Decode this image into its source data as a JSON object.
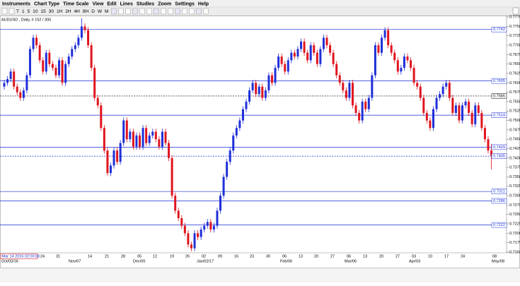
{
  "menu": [
    "Instruments",
    "Chart Type",
    "Time Scale",
    "View",
    "Edit",
    "Lines",
    "Studies",
    "Zoom",
    "Settings",
    "Help"
  ],
  "toolbar": [
    "T",
    "1",
    "5",
    "10",
    "15",
    "30",
    "1H",
    "2H",
    "4H",
    "8H",
    "D",
    "W",
    "M"
  ],
  "chart_data": {
    "type": "candlestick",
    "title": "AUDUSD , Daily, # 152 / 300",
    "up_color": "#1f2fd8",
    "down_color": "#e0141e",
    "level_color": "#1a2fd6",
    "ylim": [
      0.7148,
      0.7779
    ],
    "yticks": [
      0.7775,
      {
        "value": 0.775,
        "label": "0.7750"
      },
      0.7725,
      {
        "value": 0.77,
        "label": "0.7700"
      },
      0.7675,
      {
        "value": 0.765,
        "label": "0.7650"
      },
      0.7625,
      {
        "value": 0.76,
        "label": "0.7600"
      },
      0.7575,
      {
        "value": 0.755,
        "label": "0.7550"
      },
      0.7525,
      {
        "value": 0.75,
        "label": "0.7500"
      },
      0.7475,
      {
        "value": 0.745,
        "label": "0.7450"
      },
      0.7425,
      {
        "value": 0.74,
        "label": "0.7400"
      },
      0.7375,
      {
        "value": 0.735,
        "label": "0.7350"
      },
      0.7325,
      {
        "value": 0.73,
        "label": "0.7300"
      },
      0.7275,
      {
        "value": 0.725,
        "label": "0.7250"
      },
      0.7225,
      {
        "value": 0.72,
        "label": "0.7200"
      },
      0.7175,
      {
        "value": 0.715,
        "label": "0.7150"
      }
    ],
    "levels": [
      0.7742,
      0.7605,
      0.7514,
      0.7429,
      0.7311,
      0.7286,
      0.7222
    ],
    "cursor_line": 0.7565,
    "price_line": 0.7405,
    "cursor_date": "Mar 14 2016 02:00:00",
    "x_labels": [
      "24",
      "31",
      "14",
      "21",
      "28",
      "05",
      "12",
      "19",
      "26",
      "02",
      "09",
      "16",
      "23",
      "30",
      "06",
      "13",
      "20",
      "27",
      "06",
      "13",
      "20",
      "27",
      "03",
      "10",
      "17",
      "24",
      "08"
    ],
    "x_month_labels": [
      "Oct/03/16",
      "Nov/07",
      "Dec/05",
      "Jan/02/17",
      "Feb/06",
      "Mar/06",
      "Apr/03",
      "May/08"
    ],
    "candles": [
      [
        0.759,
        0.7608,
        0.7582,
        0.76
      ],
      [
        0.76,
        0.7618,
        0.7592,
        0.761
      ],
      [
        0.761,
        0.7638,
        0.7602,
        0.763
      ],
      [
        0.763,
        0.7638,
        0.7582,
        0.759
      ],
      [
        0.759,
        0.7598,
        0.7567,
        0.7575
      ],
      [
        0.7575,
        0.7583,
        0.7552,
        0.756
      ],
      [
        0.756,
        0.7588,
        0.7552,
        0.758
      ],
      [
        0.758,
        0.7628,
        0.7572,
        0.762
      ],
      [
        0.762,
        0.7698,
        0.7612,
        0.769
      ],
      [
        0.769,
        0.7728,
        0.7682,
        0.772
      ],
      [
        0.772,
        0.7728,
        0.7692,
        0.77
      ],
      [
        0.77,
        0.7708,
        0.7652,
        0.766
      ],
      [
        0.766,
        0.7668,
        0.7622,
        0.763
      ],
      [
        0.763,
        0.7688,
        0.7622,
        0.768
      ],
      [
        0.768,
        0.7688,
        0.7642,
        0.765
      ],
      [
        0.765,
        0.7658,
        0.7632,
        0.764
      ],
      [
        0.764,
        0.7648,
        0.7612,
        0.762
      ],
      [
        0.762,
        0.7668,
        0.7612,
        0.766
      ],
      [
        0.766,
        0.7668,
        0.7592,
        0.76
      ],
      [
        0.76,
        0.7658,
        0.7592,
        0.765
      ],
      [
        0.765,
        0.7678,
        0.7642,
        0.767
      ],
      [
        0.767,
        0.7698,
        0.7662,
        0.769
      ],
      [
        0.769,
        0.7708,
        0.7682,
        0.77
      ],
      [
        0.77,
        0.7728,
        0.7692,
        0.772
      ],
      [
        0.772,
        0.7772,
        0.7712,
        0.775
      ],
      [
        0.775,
        0.7758,
        0.7732,
        0.774
      ],
      [
        0.774,
        0.7748,
        0.7692,
        0.77
      ],
      [
        0.77,
        0.7708,
        0.7632,
        0.764
      ],
      [
        0.764,
        0.7648,
        0.7552,
        0.756
      ],
      [
        0.756,
        0.7568,
        0.7532,
        0.754
      ],
      [
        0.754,
        0.7548,
        0.7472,
        0.748
      ],
      [
        0.748,
        0.7488,
        0.7412,
        0.742
      ],
      [
        0.742,
        0.7428,
        0.7352,
        0.736
      ],
      [
        0.736,
        0.7388,
        0.7352,
        0.738
      ],
      [
        0.738,
        0.7428,
        0.7372,
        0.742
      ],
      [
        0.742,
        0.7428,
        0.7382,
        0.739
      ],
      [
        0.739,
        0.7448,
        0.7382,
        0.744
      ],
      [
        0.744,
        0.7508,
        0.7432,
        0.75
      ],
      [
        0.75,
        0.7508,
        0.7442,
        0.745
      ],
      [
        0.745,
        0.7478,
        0.7442,
        0.747
      ],
      [
        0.747,
        0.7478,
        0.7422,
        0.743
      ],
      [
        0.743,
        0.7468,
        0.7422,
        0.746
      ],
      [
        0.746,
        0.7468,
        0.7422,
        0.743
      ],
      [
        0.743,
        0.7488,
        0.7422,
        0.748
      ],
      [
        0.748,
        0.7488,
        0.7432,
        0.744
      ],
      [
        0.744,
        0.7468,
        0.7432,
        0.746
      ],
      [
        0.746,
        0.7478,
        0.7452,
        0.747
      ],
      [
        0.747,
        0.7478,
        0.7442,
        0.745
      ],
      [
        0.745,
        0.7458,
        0.7422,
        0.743
      ],
      [
        0.743,
        0.7478,
        0.7422,
        0.747
      ],
      [
        0.747,
        0.7478,
        0.7432,
        0.744
      ],
      [
        0.744,
        0.7448,
        0.7392,
        0.74
      ],
      [
        0.74,
        0.7408,
        0.7292,
        0.73
      ],
      [
        0.73,
        0.7308,
        0.7252,
        0.726
      ],
      [
        0.726,
        0.7268,
        0.7232,
        0.724
      ],
      [
        0.724,
        0.7248,
        0.7212,
        0.722
      ],
      [
        0.722,
        0.7228,
        0.7192,
        0.72
      ],
      [
        0.72,
        0.7208,
        0.7162,
        0.717
      ],
      [
        0.717,
        0.7178,
        0.7152,
        0.716
      ],
      [
        0.716,
        0.7208,
        0.7152,
        0.72
      ],
      [
        0.72,
        0.7208,
        0.7182,
        0.719
      ],
      [
        0.719,
        0.7218,
        0.7182,
        0.721
      ],
      [
        0.721,
        0.7228,
        0.7202,
        0.722
      ],
      [
        0.722,
        0.7238,
        0.7212,
        0.723
      ],
      [
        0.723,
        0.7238,
        0.7202,
        0.721
      ],
      [
        0.721,
        0.7228,
        0.7202,
        0.722
      ],
      [
        0.722,
        0.7268,
        0.7212,
        0.726
      ],
      [
        0.726,
        0.7308,
        0.7252,
        0.73
      ],
      [
        0.73,
        0.7358,
        0.7292,
        0.735
      ],
      [
        0.735,
        0.7398,
        0.7342,
        0.739
      ],
      [
        0.739,
        0.7428,
        0.7382,
        0.742
      ],
      [
        0.742,
        0.7468,
        0.7412,
        0.746
      ],
      [
        0.746,
        0.7488,
        0.7452,
        0.748
      ],
      [
        0.748,
        0.7508,
        0.7472,
        0.75
      ],
      [
        0.75,
        0.7538,
        0.7492,
        0.753
      ],
      [
        0.753,
        0.7558,
        0.7522,
        0.755
      ],
      [
        0.755,
        0.7588,
        0.7542,
        0.758
      ],
      [
        0.758,
        0.7608,
        0.7572,
        0.76
      ],
      [
        0.76,
        0.7608,
        0.7562,
        0.757
      ],
      [
        0.757,
        0.7598,
        0.7562,
        0.759
      ],
      [
        0.759,
        0.7598,
        0.7552,
        0.756
      ],
      [
        0.756,
        0.7588,
        0.7552,
        0.758
      ],
      [
        0.758,
        0.7628,
        0.7572,
        0.762
      ],
      [
        0.762,
        0.7628,
        0.7592,
        0.76
      ],
      [
        0.76,
        0.7648,
        0.7592,
        0.764
      ],
      [
        0.764,
        0.7678,
        0.7632,
        0.767
      ],
      [
        0.767,
        0.7678,
        0.7642,
        0.765
      ],
      [
        0.765,
        0.7658,
        0.7622,
        0.763
      ],
      [
        0.763,
        0.7668,
        0.7622,
        0.766
      ],
      [
        0.766,
        0.7688,
        0.7652,
        0.768
      ],
      [
        0.768,
        0.7688,
        0.7662,
        0.767
      ],
      [
        0.767,
        0.7698,
        0.7662,
        0.769
      ],
      [
        0.769,
        0.7718,
        0.7682,
        0.771
      ],
      [
        0.771,
        0.7718,
        0.7672,
        0.768
      ],
      [
        0.768,
        0.7688,
        0.7652,
        0.766
      ],
      [
        0.766,
        0.7708,
        0.7652,
        0.77
      ],
      [
        0.77,
        0.7708,
        0.7672,
        0.768
      ],
      [
        0.768,
        0.7688,
        0.7642,
        0.765
      ],
      [
        0.765,
        0.7698,
        0.7642,
        0.769
      ],
      [
        0.769,
        0.7728,
        0.7682,
        0.772
      ],
      [
        0.772,
        0.7728,
        0.7692,
        0.77
      ],
      [
        0.77,
        0.7708,
        0.7672,
        0.768
      ],
      [
        0.768,
        0.7688,
        0.7642,
        0.765
      ],
      [
        0.765,
        0.7658,
        0.7612,
        0.762
      ],
      [
        0.762,
        0.7628,
        0.7592,
        0.76
      ],
      [
        0.76,
        0.7608,
        0.7572,
        0.758
      ],
      [
        0.758,
        0.7588,
        0.7552,
        0.756
      ],
      [
        0.756,
        0.7608,
        0.7552,
        0.76
      ],
      [
        0.76,
        0.7608,
        0.7532,
        0.754
      ],
      [
        0.754,
        0.7548,
        0.7512,
        0.752
      ],
      [
        0.752,
        0.7528,
        0.7492,
        0.75
      ],
      [
        0.75,
        0.7558,
        0.7492,
        0.755
      ],
      [
        0.755,
        0.7558,
        0.7522,
        0.753
      ],
      [
        0.753,
        0.7568,
        0.7522,
        0.756
      ],
      [
        0.756,
        0.7628,
        0.7552,
        0.762
      ],
      [
        0.762,
        0.7708,
        0.7612,
        0.77
      ],
      [
        0.77,
        0.7708,
        0.7672,
        0.768
      ],
      [
        0.768,
        0.7728,
        0.7672,
        0.772
      ],
      [
        0.772,
        0.7748,
        0.7712,
        0.774
      ],
      [
        0.774,
        0.7748,
        0.7692,
        0.77
      ],
      [
        0.77,
        0.7708,
        0.7672,
        0.768
      ],
      [
        0.768,
        0.7688,
        0.7652,
        0.766
      ],
      [
        0.766,
        0.7668,
        0.7622,
        0.763
      ],
      [
        0.763,
        0.7648,
        0.7622,
        0.764
      ],
      [
        0.764,
        0.7678,
        0.7632,
        0.767
      ],
      [
        0.767,
        0.7678,
        0.7652,
        0.766
      ],
      [
        0.766,
        0.7668,
        0.7632,
        0.764
      ],
      [
        0.764,
        0.7648,
        0.7592,
        0.76
      ],
      [
        0.76,
        0.7608,
        0.7582,
        0.759
      ],
      [
        0.759,
        0.7598,
        0.7552,
        0.756
      ],
      [
        0.756,
        0.7568,
        0.7512,
        0.752
      ],
      [
        0.752,
        0.7528,
        0.7492,
        0.75
      ],
      [
        0.75,
        0.7508,
        0.7472,
        0.748
      ],
      [
        0.748,
        0.7538,
        0.7472,
        0.753
      ],
      [
        0.753,
        0.7568,
        0.7522,
        0.756
      ],
      [
        0.756,
        0.7578,
        0.7552,
        0.757
      ],
      [
        0.757,
        0.7598,
        0.7562,
        0.759
      ],
      [
        0.759,
        0.7608,
        0.7582,
        0.76
      ],
      [
        0.76,
        0.7608,
        0.7552,
        0.756
      ],
      [
        0.756,
        0.7568,
        0.7512,
        0.752
      ],
      [
        0.752,
        0.7548,
        0.7512,
        0.754
      ],
      [
        0.754,
        0.7548,
        0.7492,
        0.75
      ],
      [
        0.75,
        0.7548,
        0.7492,
        0.754
      ],
      [
        0.754,
        0.7558,
        0.7532,
        0.755
      ],
      [
        0.755,
        0.7558,
        0.7512,
        0.752
      ],
      [
        0.752,
        0.7528,
        0.7482,
        0.749
      ],
      [
        0.749,
        0.7548,
        0.7482,
        0.754
      ],
      [
        0.754,
        0.7548,
        0.7512,
        0.752
      ],
      [
        0.752,
        0.7528,
        0.7472,
        0.748
      ],
      [
        0.748,
        0.7488,
        0.7442,
        0.745
      ],
      [
        0.745,
        0.7458,
        0.7412,
        0.742
      ],
      [
        0.742,
        0.7438,
        0.737,
        0.7405
      ]
    ]
  }
}
